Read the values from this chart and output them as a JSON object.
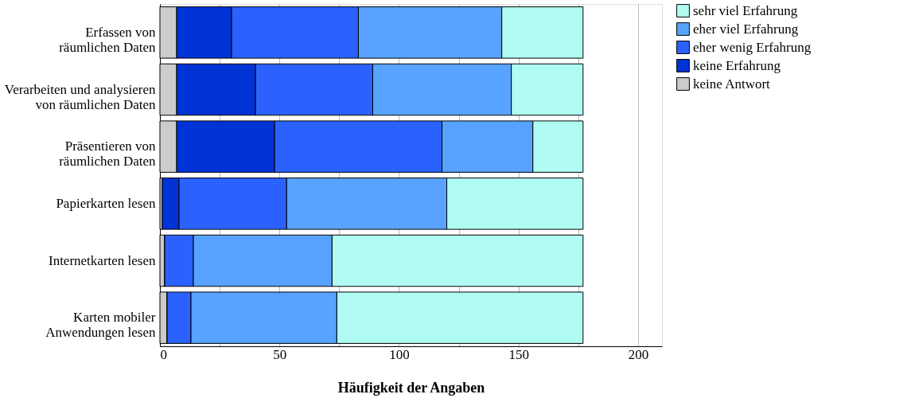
{
  "chart_data": {
    "type": "bar",
    "orientation": "horizontal",
    "stacked": true,
    "categories": [
      "Erfassen von räumlichen Daten",
      "Verarbeiten und analysieren von räumlichen Daten",
      "Präsentieren von räumlichen Daten",
      "Papierkarten lesen",
      "Internetkarten lesen",
      "Karten mobiler Anwendungen lesen"
    ],
    "series": [
      {
        "name": "keine Antwort",
        "color": "#cccccc",
        "values": [
          7,
          7,
          7,
          1,
          2,
          3
        ]
      },
      {
        "name": "keine Erfahrung",
        "color": "#0033d6",
        "values": [
          23,
          33,
          41,
          7,
          0,
          0
        ]
      },
      {
        "name": "eher wenig Erfahrung",
        "color": "#2b62ff",
        "values": [
          53,
          49,
          70,
          45,
          12,
          10
        ]
      },
      {
        "name": "eher viel Erfahrung",
        "color": "#57a3ff",
        "values": [
          60,
          58,
          38,
          67,
          58,
          61
        ]
      },
      {
        "name": "sehr viel Erfahrung",
        "color": "#b0fcf2",
        "values": [
          34,
          30,
          21,
          57,
          105,
          103
        ]
      }
    ],
    "xlabel": "Häufigkeit der Angaben",
    "xlim": [
      0,
      210
    ],
    "xticks": [
      0,
      {
        "value": 25,
        "label": null
      },
      50,
      {
        "value": 75,
        "label": null
      },
      100,
      {
        "value": 125,
        "label": null
      },
      150,
      {
        "value": 175,
        "label": null
      },
      200
    ],
    "grid": "x",
    "legend": "top right"
  }
}
